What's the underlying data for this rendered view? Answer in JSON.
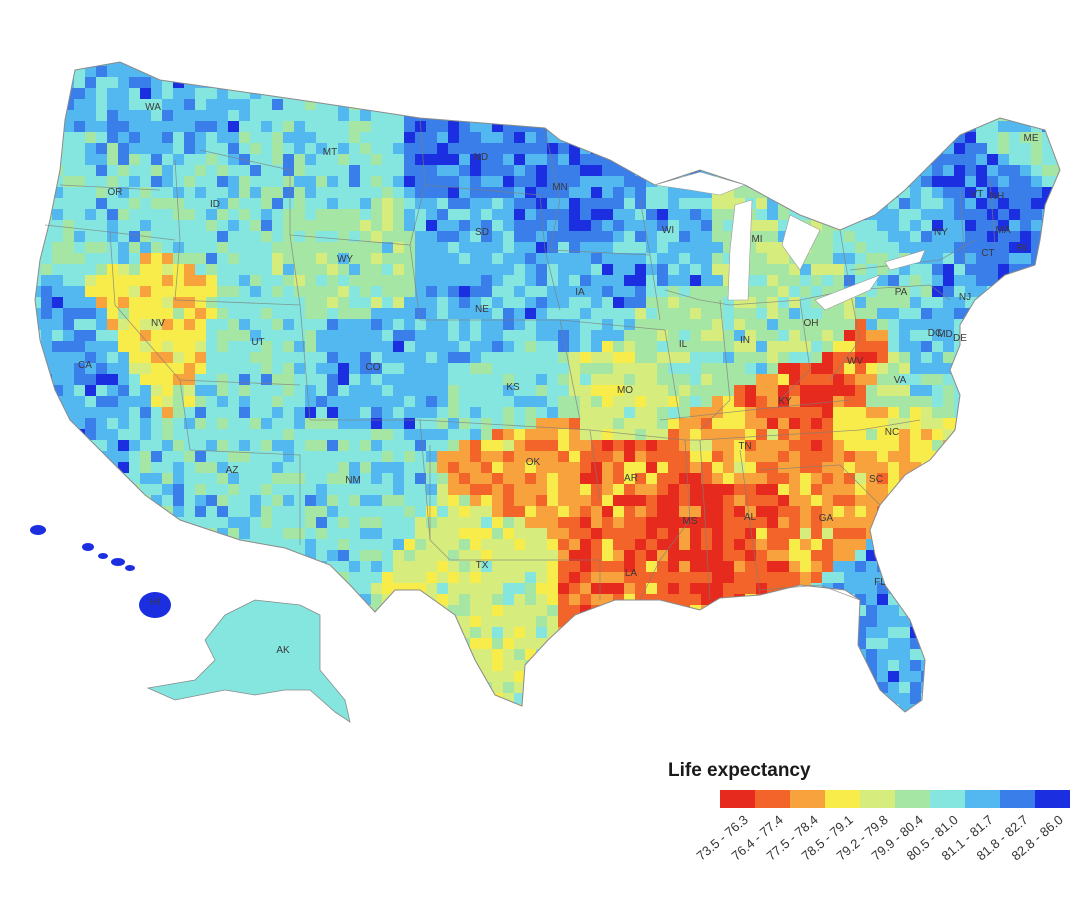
{
  "legend": {
    "title": "Life expectancy",
    "bins": [
      {
        "label": "73.5 - 76.3",
        "color": "#e62b1e"
      },
      {
        "label": "76.4 - 77.4",
        "color": "#f2642a"
      },
      {
        "label": "77.5 - 78.4",
        "color": "#f7a23c"
      },
      {
        "label": "78.5 - 79.1",
        "color": "#f8ec4a"
      },
      {
        "label": "79.2 - 79.8",
        "color": "#d6ec7c"
      },
      {
        "label": "79.9 - 80.4",
        "color": "#a6e6a4"
      },
      {
        "label": "80.5 - 81.0",
        "color": "#84e6df"
      },
      {
        "label": "81.1 - 81.7",
        "color": "#52b8ef"
      },
      {
        "label": "81.8 - 82.7",
        "color": "#3a7eea"
      },
      {
        "label": "82.8 - 86.0",
        "color": "#1b2fe0"
      }
    ]
  },
  "states": [
    {
      "abbr": "WA",
      "bin": 7
    },
    {
      "abbr": "OR",
      "bin": 6
    },
    {
      "abbr": "CA",
      "bin": 7
    },
    {
      "abbr": "NV",
      "bin": 3
    },
    {
      "abbr": "ID",
      "bin": 6
    },
    {
      "abbr": "MT",
      "bin": 6
    },
    {
      "abbr": "WY",
      "bin": 5
    },
    {
      "abbr": "UT",
      "bin": 6
    },
    {
      "abbr": "AZ",
      "bin": 6
    },
    {
      "abbr": "CO",
      "bin": 7
    },
    {
      "abbr": "NM",
      "bin": 6
    },
    {
      "abbr": "ND",
      "bin": 8
    },
    {
      "abbr": "SD",
      "bin": 7
    },
    {
      "abbr": "NE",
      "bin": 7
    },
    {
      "abbr": "KS",
      "bin": 6
    },
    {
      "abbr": "OK",
      "bin": 2
    },
    {
      "abbr": "TX",
      "bin": 4
    },
    {
      "abbr": "MN",
      "bin": 8
    },
    {
      "abbr": "IA",
      "bin": 7
    },
    {
      "abbr": "MO",
      "bin": 4
    },
    {
      "abbr": "AR",
      "bin": 1
    },
    {
      "abbr": "LA",
      "bin": 1
    },
    {
      "abbr": "WI",
      "bin": 7
    },
    {
      "abbr": "IL",
      "bin": 5
    },
    {
      "abbr": "MI",
      "bin": 5
    },
    {
      "abbr": "IN",
      "bin": 5
    },
    {
      "abbr": "OH",
      "bin": 5
    },
    {
      "abbr": "KY",
      "bin": 1
    },
    {
      "abbr": "TN",
      "bin": 2
    },
    {
      "abbr": "MS",
      "bin": 0
    },
    {
      "abbr": "AL",
      "bin": 1
    },
    {
      "abbr": "GA",
      "bin": 2
    },
    {
      "abbr": "FL",
      "bin": 7
    },
    {
      "abbr": "SC",
      "bin": 2
    },
    {
      "abbr": "NC",
      "bin": 3
    },
    {
      "abbr": "VA",
      "bin": 5
    },
    {
      "abbr": "WV",
      "bin": 1
    },
    {
      "abbr": "PA",
      "bin": 6
    },
    {
      "abbr": "NY",
      "bin": 7
    },
    {
      "abbr": "VT",
      "bin": 8
    },
    {
      "abbr": "NH",
      "bin": 8
    },
    {
      "abbr": "ME",
      "bin": 6
    },
    {
      "abbr": "MA",
      "bin": 8
    },
    {
      "abbr": "RI",
      "bin": 8
    },
    {
      "abbr": "CT",
      "bin": 8
    },
    {
      "abbr": "NJ",
      "bin": 7
    },
    {
      "abbr": "DE",
      "bin": 6
    },
    {
      "abbr": "MD",
      "bin": 7
    },
    {
      "abbr": "DC",
      "bin": 7
    },
    {
      "abbr": "AK",
      "bin": 6
    },
    {
      "abbr": "HI",
      "bin": 9
    }
  ]
}
